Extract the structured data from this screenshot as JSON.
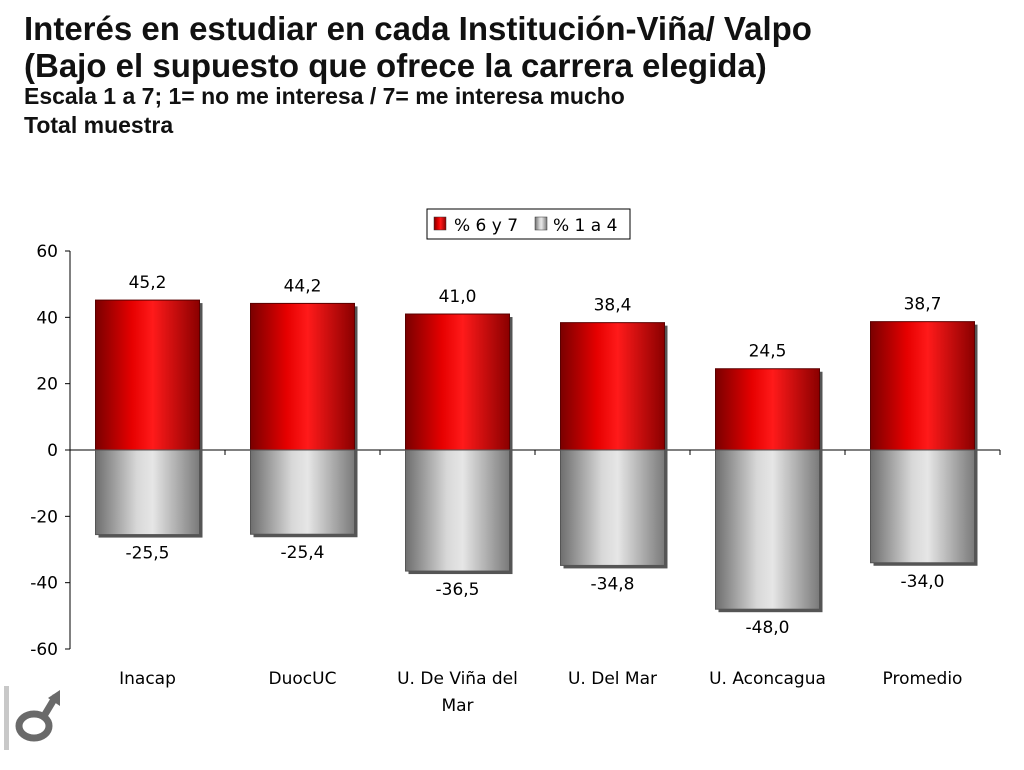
{
  "title": {
    "line1": "Interés en estudiar en cada Institución-Viña/ Valpo",
    "line2": "(Bajo el supuesto que ofrece la carrera  elegida)",
    "line3": "Escala 1 a 7; 1= no me interesa / 7= me interesa mucho",
    "line4": "Total muestra"
  },
  "logo": {
    "icon": "gender-symbol-logo-icon"
  },
  "chart_data": {
    "type": "bar",
    "stacked": true,
    "categories": [
      "Inacap",
      "DuocUC",
      "U. De Viña del Mar",
      "U. Del Mar",
      "U. Aconcagua",
      "Promedio"
    ],
    "category_lines": [
      [
        "Inacap"
      ],
      [
        "DuocUC"
      ],
      [
        "U. De Viña del",
        "Mar"
      ],
      [
        "U. Del Mar"
      ],
      [
        "U. Aconcagua"
      ],
      [
        "Promedio"
      ]
    ],
    "series": [
      {
        "name": "% 6 y 7",
        "color": "#e00000",
        "values": [
          45.2,
          44.2,
          41.0,
          38.4,
          24.5,
          38.7
        ],
        "labels": [
          "45,2",
          "44,2",
          "41,0",
          "38,4",
          "24,5",
          "38,7"
        ]
      },
      {
        "name": "% 1 a 4",
        "color": "#b0b0b0",
        "values": [
          -25.5,
          -25.4,
          -36.5,
          -34.8,
          -48.0,
          -34.0
        ],
        "labels": [
          "-25,5",
          "-25,4",
          "-36,5",
          "-34,8",
          "-48,0",
          "-34,0"
        ]
      }
    ],
    "ylim": [
      -60,
      60
    ],
    "yticks": [
      60,
      40,
      20,
      0,
      -20,
      -40,
      -60
    ],
    "ytick_labels": [
      "60",
      "40",
      "20",
      "0",
      "-20",
      "-40",
      "-60"
    ],
    "legend_position": "top-center",
    "grid": false
  }
}
